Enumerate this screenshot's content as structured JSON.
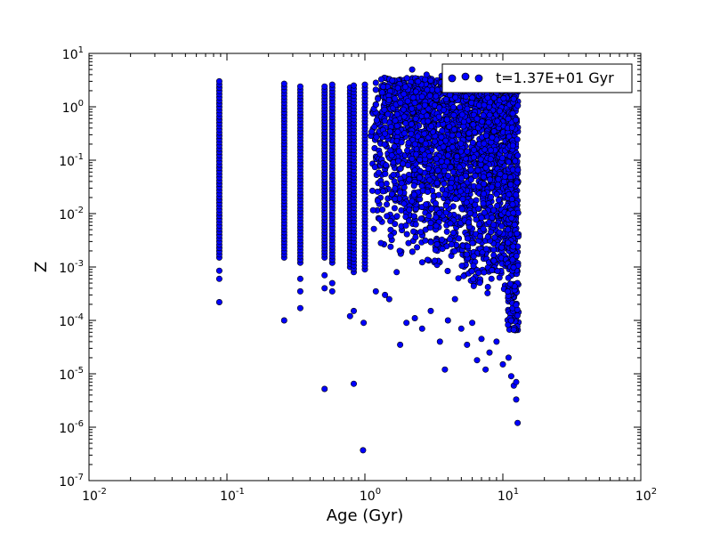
{
  "chart_data": {
    "type": "scatter",
    "xlabel": "Age (Gyr)",
    "ylabel": "Z",
    "x_scale": "log",
    "y_scale": "log",
    "xlim": [
      0.01,
      100
    ],
    "ylim": [
      1e-07,
      10
    ],
    "x_ticks": [
      {
        "value": 0.01,
        "base": "10",
        "exp": "-2"
      },
      {
        "value": 0.1,
        "base": "10",
        "exp": "-1"
      },
      {
        "value": 1,
        "base": "10",
        "exp": "0"
      },
      {
        "value": 10,
        "base": "10",
        "exp": "1"
      },
      {
        "value": 100,
        "base": "10",
        "exp": "2"
      }
    ],
    "y_ticks": [
      {
        "value": 1e-07,
        "base": "10",
        "exp": "-7"
      },
      {
        "value": 1e-06,
        "base": "10",
        "exp": "-6"
      },
      {
        "value": 1e-05,
        "base": "10",
        "exp": "-5"
      },
      {
        "value": 0.0001,
        "base": "10",
        "exp": "-4"
      },
      {
        "value": 0.001,
        "base": "10",
        "exp": "-3"
      },
      {
        "value": 0.01,
        "base": "10",
        "exp": "-2"
      },
      {
        "value": 0.1,
        "base": "10",
        "exp": "-1"
      },
      {
        "value": 1,
        "base": "10",
        "exp": "0"
      },
      {
        "value": 10,
        "base": "10",
        "exp": "1"
      }
    ],
    "grid": false,
    "legend_position": "top-right",
    "series": [
      {
        "name": "t=1.37E+01 Gyr",
        "color": "#0000ff",
        "edge_color": "#000000",
        "columns": [
          {
            "x": 0.088,
            "y_top": 3.0,
            "y_bottom": 0.0015,
            "outliers": [
              [
                0.088,
                0.00085
              ],
              [
                0.088,
                0.0006
              ],
              [
                0.088,
                0.00022
              ]
            ]
          },
          {
            "x": 0.26,
            "y_top": 2.7,
            "y_bottom": 0.0015,
            "outliers": [
              [
                0.26,
                0.0001
              ]
            ]
          },
          {
            "x": 0.34,
            "y_top": 2.4,
            "y_bottom": 0.0012,
            "outliers": [
              [
                0.34,
                0.0006
              ],
              [
                0.34,
                0.00035
              ],
              [
                0.34,
                0.00017
              ]
            ]
          },
          {
            "x": 0.51,
            "y_top": 2.4,
            "y_bottom": 0.0015,
            "outliers": [
              [
                0.51,
                0.0007
              ],
              [
                0.51,
                0.0004
              ],
              [
                0.51,
                5.2e-06
              ]
            ]
          },
          {
            "x": 0.58,
            "y_top": 2.6,
            "y_bottom": 0.0012,
            "outliers": [
              [
                0.58,
                0.0005
              ],
              [
                0.58,
                0.00035
              ]
            ]
          },
          {
            "x": 0.78,
            "y_top": 2.3,
            "y_bottom": 0.001,
            "outliers": [
              [
                0.78,
                0.00012
              ]
            ]
          },
          {
            "x": 0.83,
            "y_top": 2.5,
            "y_bottom": 0.0008,
            "outliers": [
              [
                0.83,
                6.5e-06
              ],
              [
                0.83,
                0.00015
              ]
            ]
          },
          {
            "x": 1.0,
            "y_top": 2.6,
            "y_bottom": 0.0009,
            "outliers": [
              [
                0.98,
                9e-05
              ],
              [
                0.97,
                3.7e-07
              ]
            ]
          }
        ],
        "dense_region": {
          "x_start": 1.1,
          "x_end": 12.5,
          "y_top": 3.5,
          "y_floor": 0.0002,
          "x_edge": 13.0
        },
        "scattered_points": [
          [
            1.2,
            0.00035
          ],
          [
            1.4,
            0.0003
          ],
          [
            1.5,
            0.00025
          ],
          [
            1.7,
            0.0008
          ],
          [
            1.8,
            3.5e-05
          ],
          [
            2.0,
            9e-05
          ],
          [
            2.3,
            0.00011
          ],
          [
            2.6,
            7e-05
          ],
          [
            3.0,
            0.00015
          ],
          [
            3.5,
            4e-05
          ],
          [
            3.8,
            1.2e-05
          ],
          [
            4.0,
            0.0001
          ],
          [
            4.5,
            0.00025
          ],
          [
            5.0,
            7e-05
          ],
          [
            5.5,
            3.5e-05
          ],
          [
            6.0,
            9e-05
          ],
          [
            6.5,
            1.8e-05
          ],
          [
            7.0,
            4.5e-05
          ],
          [
            7.5,
            1.2e-05
          ],
          [
            8.0,
            2.5e-05
          ],
          [
            9.0,
            4e-05
          ],
          [
            10.0,
            1.5e-05
          ],
          [
            11.0,
            2e-05
          ],
          [
            11.5,
            9e-06
          ],
          [
            12.0,
            6e-06
          ],
          [
            12.5,
            3.3e-06
          ],
          [
            12.8,
            1.2e-06
          ],
          [
            12.5,
            7e-06
          ],
          [
            2.2,
            5.0
          ],
          [
            2.8,
            4.0
          ],
          [
            3.6,
            3.8
          ],
          [
            4.6,
            3.2
          ]
        ]
      }
    ]
  }
}
